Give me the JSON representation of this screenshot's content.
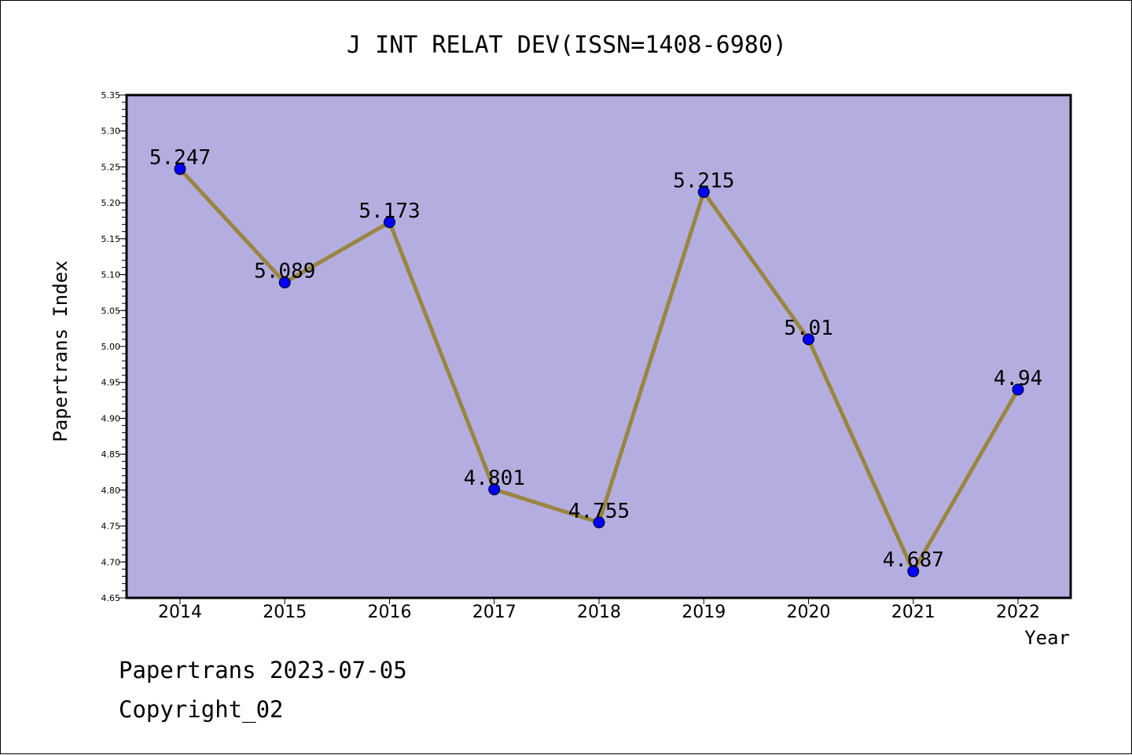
{
  "chart_data": {
    "type": "line",
    "title": "J INT RELAT DEV(ISSN=1408-6980)",
    "xlabel": "Year",
    "ylabel": "Papertrans Index",
    "categories": [
      "2014",
      "2015",
      "2016",
      "2017",
      "2018",
      "2019",
      "2020",
      "2021",
      "2022"
    ],
    "values": [
      5.247,
      5.089,
      5.173,
      4.801,
      4.755,
      5.215,
      5.01,
      4.687,
      4.94
    ],
    "data_labels": [
      "5.247",
      "5.089",
      "5.173",
      "4.801",
      "4.755",
      "5.215",
      "5.01",
      "4.687",
      "4.94"
    ],
    "ylim": [
      4.65,
      5.35
    ],
    "yticks": [
      "4.65",
      "4.70",
      "4.75",
      "4.80",
      "4.85",
      "4.90",
      "4.95",
      "5.00",
      "5.05",
      "5.10",
      "5.15",
      "5.20",
      "5.25",
      "5.30",
      "5.35"
    ],
    "grid": false,
    "colors": {
      "plot_background": "#b4aee0",
      "line": "#9a8540",
      "marker": "#0000ff"
    }
  },
  "footer": {
    "line1": "Papertrans 2023-07-05",
    "line2": "Copyright_02"
  }
}
